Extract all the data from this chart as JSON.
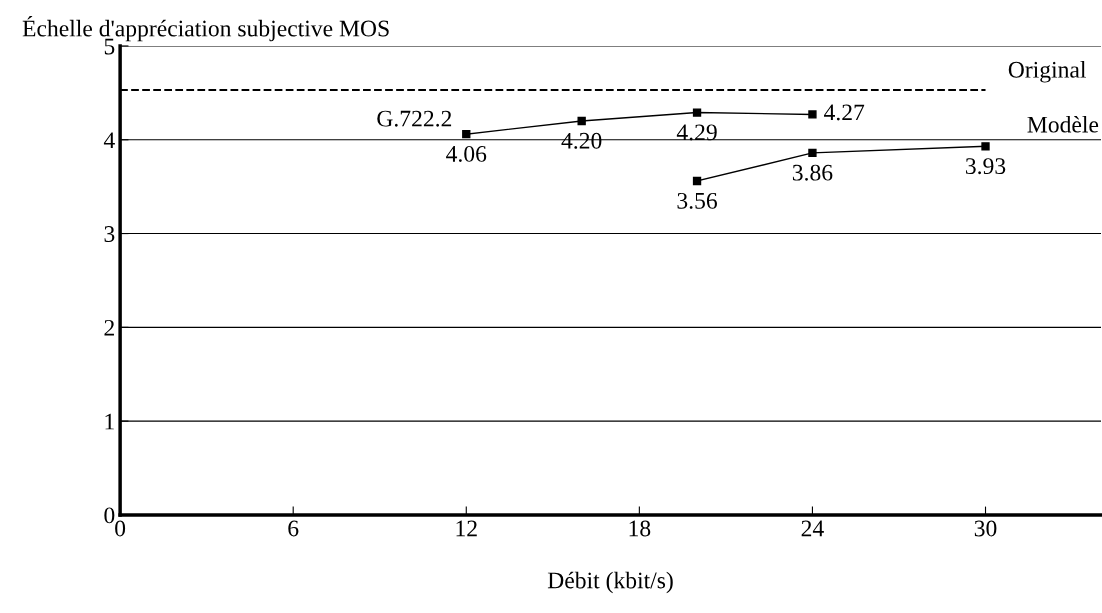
{
  "chart_data": {
    "type": "line",
    "ylabel": "Échelle d'appréciation subjective MOS",
    "xlabel": "Débit (kbit/s)",
    "series": [
      {
        "name": "G.722.2",
        "color": "#000000",
        "x": [
          12,
          16,
          20,
          24
        ],
        "values": [
          4.06,
          4.2,
          4.29,
          4.27
        ],
        "value_labels": [
          "4.06",
          "4.20",
          "4.29",
          "4.27"
        ]
      },
      {
        "color": "#000000",
        "x": [
          20,
          24,
          30
        ],
        "values": [
          3.56,
          3.86,
          3.93
        ],
        "value_labels": [
          "3.56",
          "3.86",
          "3.93"
        ]
      }
    ],
    "xlim": [
      0,
      34
    ],
    "xticks": [
      0,
      6,
      12,
      18,
      24,
      30
    ],
    "ylim": [
      0,
      5
    ],
    "yticks": [
      0,
      1,
      2,
      3,
      4,
      5
    ],
    "grid": "y",
    "marker": "square",
    "line_style": "solid",
    "ref_lines": [
      {
        "axis": "y",
        "value": 4.53,
        "label": "Original",
        "color": "#000000",
        "line_style": "dashed"
      }
    ],
    "annotations": [
      "Modèle"
    ]
  }
}
